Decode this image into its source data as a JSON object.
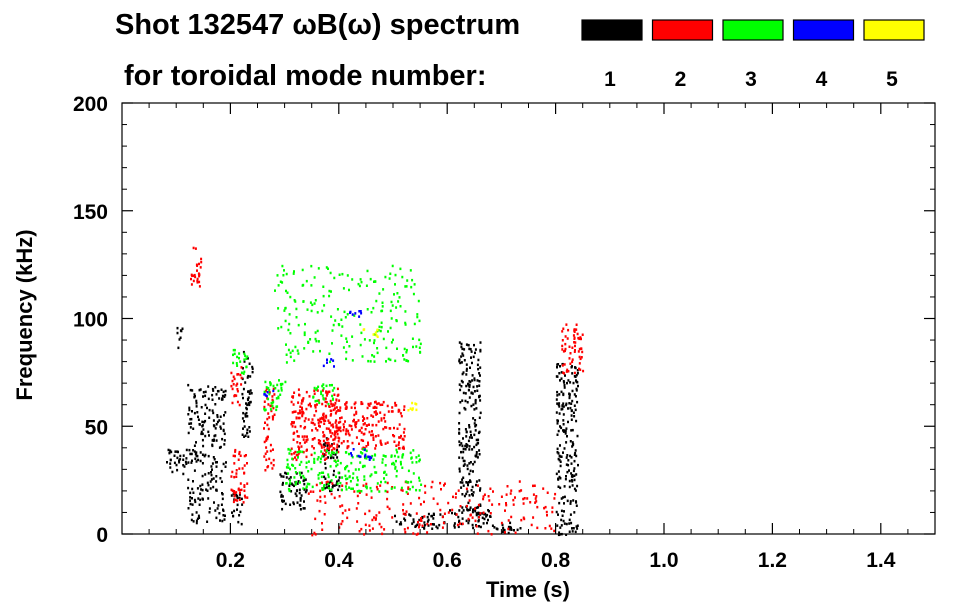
{
  "chart_data": {
    "type": "scatter",
    "title": "Shot 132547 ωB(ω) spectrum",
    "subtitle": "for toroidal mode number:",
    "xlabel": "Time (s)",
    "ylabel": "Frequency (kHz)",
    "xlim": [
      0.0,
      1.5
    ],
    "ylim": [
      0,
      200
    ],
    "x_ticks": [
      "0.2",
      "0.4",
      "0.6",
      "0.8",
      "1.0",
      "1.2",
      "1.4"
    ],
    "y_ticks": [
      "0",
      "50",
      "100",
      "150",
      "200"
    ],
    "grid": false,
    "legend_placement": "top-right",
    "legend": [
      {
        "label": "1",
        "color": "#000000"
      },
      {
        "label": "2",
        "color": "#ff0000"
      },
      {
        "label": "3",
        "color": "#00ff00"
      },
      {
        "label": "4",
        "color": "#0000ff"
      },
      {
        "label": "5",
        "color": "#ffff00"
      }
    ],
    "series": [
      {
        "name": "1",
        "color": "#000000",
        "clusters": [
          {
            "t": [
              0.08,
              0.12
            ],
            "f": [
              28,
              40
            ]
          },
          {
            "t": [
              0.1,
              0.11
            ],
            "f": [
              85,
              98
            ]
          },
          {
            "t": [
              0.12,
              0.19
            ],
            "f": [
              5,
              70
            ]
          },
          {
            "t": [
              0.2,
              0.22
            ],
            "f": [
              3,
              20
            ]
          },
          {
            "t": [
              0.22,
              0.24
            ],
            "f": [
              45,
              85
            ]
          },
          {
            "t": [
              0.29,
              0.34
            ],
            "f": [
              12,
              30
            ]
          },
          {
            "t": [
              0.37,
              0.4
            ],
            "f": [
              20,
              45
            ]
          },
          {
            "t": [
              0.5,
              0.6
            ],
            "f": [
              3,
              10
            ]
          },
          {
            "t": [
              0.6,
              0.68
            ],
            "f": [
              3,
              12
            ]
          },
          {
            "t": [
              0.68,
              0.74
            ],
            "f": [
              1,
              6
            ]
          },
          {
            "t": [
              0.62,
              0.66
            ],
            "f": [
              10,
              90
            ]
          },
          {
            "t": [
              0.8,
              0.84
            ],
            "f": [
              0,
              80
            ]
          }
        ]
      },
      {
        "name": "2",
        "color": "#ff0000",
        "clusters": [
          {
            "t": [
              0.125,
              0.145
            ],
            "f": [
              115,
              134
            ]
          },
          {
            "t": [
              0.2,
              0.22
            ],
            "f": [
              60,
              78
            ]
          },
          {
            "t": [
              0.2,
              0.23
            ],
            "f": [
              15,
              40
            ]
          },
          {
            "t": [
              0.26,
              0.28
            ],
            "f": [
              30,
              68
            ]
          },
          {
            "t": [
              0.31,
              0.4
            ],
            "f": [
              34,
              68
            ]
          },
          {
            "t": [
              0.37,
              0.52
            ],
            "f": [
              40,
              62
            ]
          },
          {
            "t": [
              0.34,
              0.8
            ],
            "f": [
              0,
              25
            ]
          },
          {
            "t": [
              0.81,
              0.85
            ],
            "f": [
              75,
              98
            ]
          }
        ]
      },
      {
        "name": "3",
        "color": "#00ff00",
        "clusters": [
          {
            "t": [
              0.2,
              0.23
            ],
            "f": [
              75,
              86
            ]
          },
          {
            "t": [
              0.26,
              0.3
            ],
            "f": [
              58,
              72
            ]
          },
          {
            "t": [
              0.35,
              0.39
            ],
            "f": [
              60,
              70
            ]
          },
          {
            "t": [
              0.3,
              0.55
            ],
            "f": [
              20,
              40
            ]
          },
          {
            "t": [
              0.28,
              0.55
            ],
            "f": [
              80,
              125
            ]
          }
        ]
      },
      {
        "name": "4",
        "color": "#0000ff",
        "clusters": [
          {
            "t": [
              0.26,
              0.28
            ],
            "f": [
              64,
              68
            ]
          },
          {
            "t": [
              0.37,
              0.39
            ],
            "f": [
              78,
              82
            ]
          },
          {
            "t": [
              0.41,
              0.44
            ],
            "f": [
              100,
              104
            ]
          },
          {
            "t": [
              0.42,
              0.46
            ],
            "f": [
              35,
              40
            ]
          }
        ]
      },
      {
        "name": "5",
        "color": "#ffff00",
        "clusters": [
          {
            "t": [
              0.44,
              0.47
            ],
            "f": [
              92,
              96
            ]
          },
          {
            "t": [
              0.52,
              0.55
            ],
            "f": [
              58,
              62
            ]
          }
        ]
      }
    ]
  }
}
